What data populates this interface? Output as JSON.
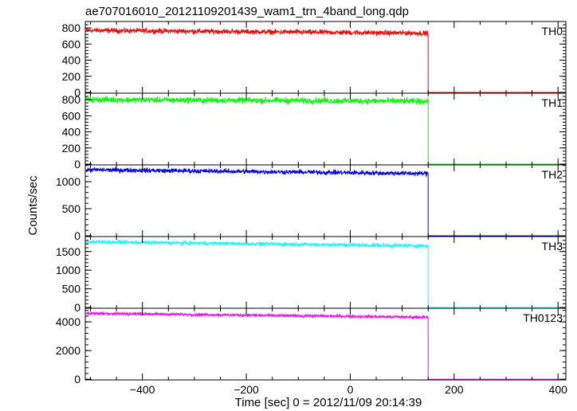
{
  "chart_data": {
    "type": "line",
    "title": "ae707016010_20121109201439_wam1_trn_4band_long.qdp",
    "xlabel": "Time [sec] 0 = 2012/11/09 20:14:39",
    "ylabel": "Counts/sec",
    "xlim": [
      -510,
      415
    ],
    "xticks": [
      -400,
      -200,
      0,
      200,
      400
    ],
    "xtick_labels": [
      "−400",
      "−200",
      "0",
      "200",
      "400"
    ],
    "grid": false,
    "drop_time": 150,
    "panels": [
      {
        "name": "TH0",
        "color": "#ff0000",
        "ylim": [
          -10,
          880
        ],
        "yticks": [
          0,
          200,
          400,
          600,
          800
        ],
        "level_start": 770,
        "level_end": 735,
        "noise": 25,
        "post_level": 0
      },
      {
        "name": "TH1",
        "color": "#00ff00",
        "ylim": [
          -10,
          880
        ],
        "yticks": [
          0,
          200,
          400,
          600,
          800
        ],
        "level_start": 800,
        "level_end": 780,
        "noise": 30,
        "post_level": 0
      },
      {
        "name": "TH2",
        "color": "#0000ff",
        "ylim": [
          -15,
          1310
        ],
        "yticks": [
          0,
          500,
          1000
        ],
        "level_start": 1220,
        "level_end": 1150,
        "noise": 35,
        "post_level": 0
      },
      {
        "name": "TH3",
        "color": "#00ffff",
        "ylim": [
          -20,
          1900
        ],
        "yticks": [
          0,
          500,
          1000,
          1500
        ],
        "level_start": 1760,
        "level_end": 1650,
        "noise": 40,
        "post_level": 0
      },
      {
        "name": "TH0123",
        "color": "#ff00ff",
        "ylim": [
          -50,
          4950
        ],
        "yticks": [
          0,
          2000,
          4000
        ],
        "level_start": 4600,
        "level_end": 4320,
        "noise": 80,
        "post_level": 0
      }
    ]
  }
}
